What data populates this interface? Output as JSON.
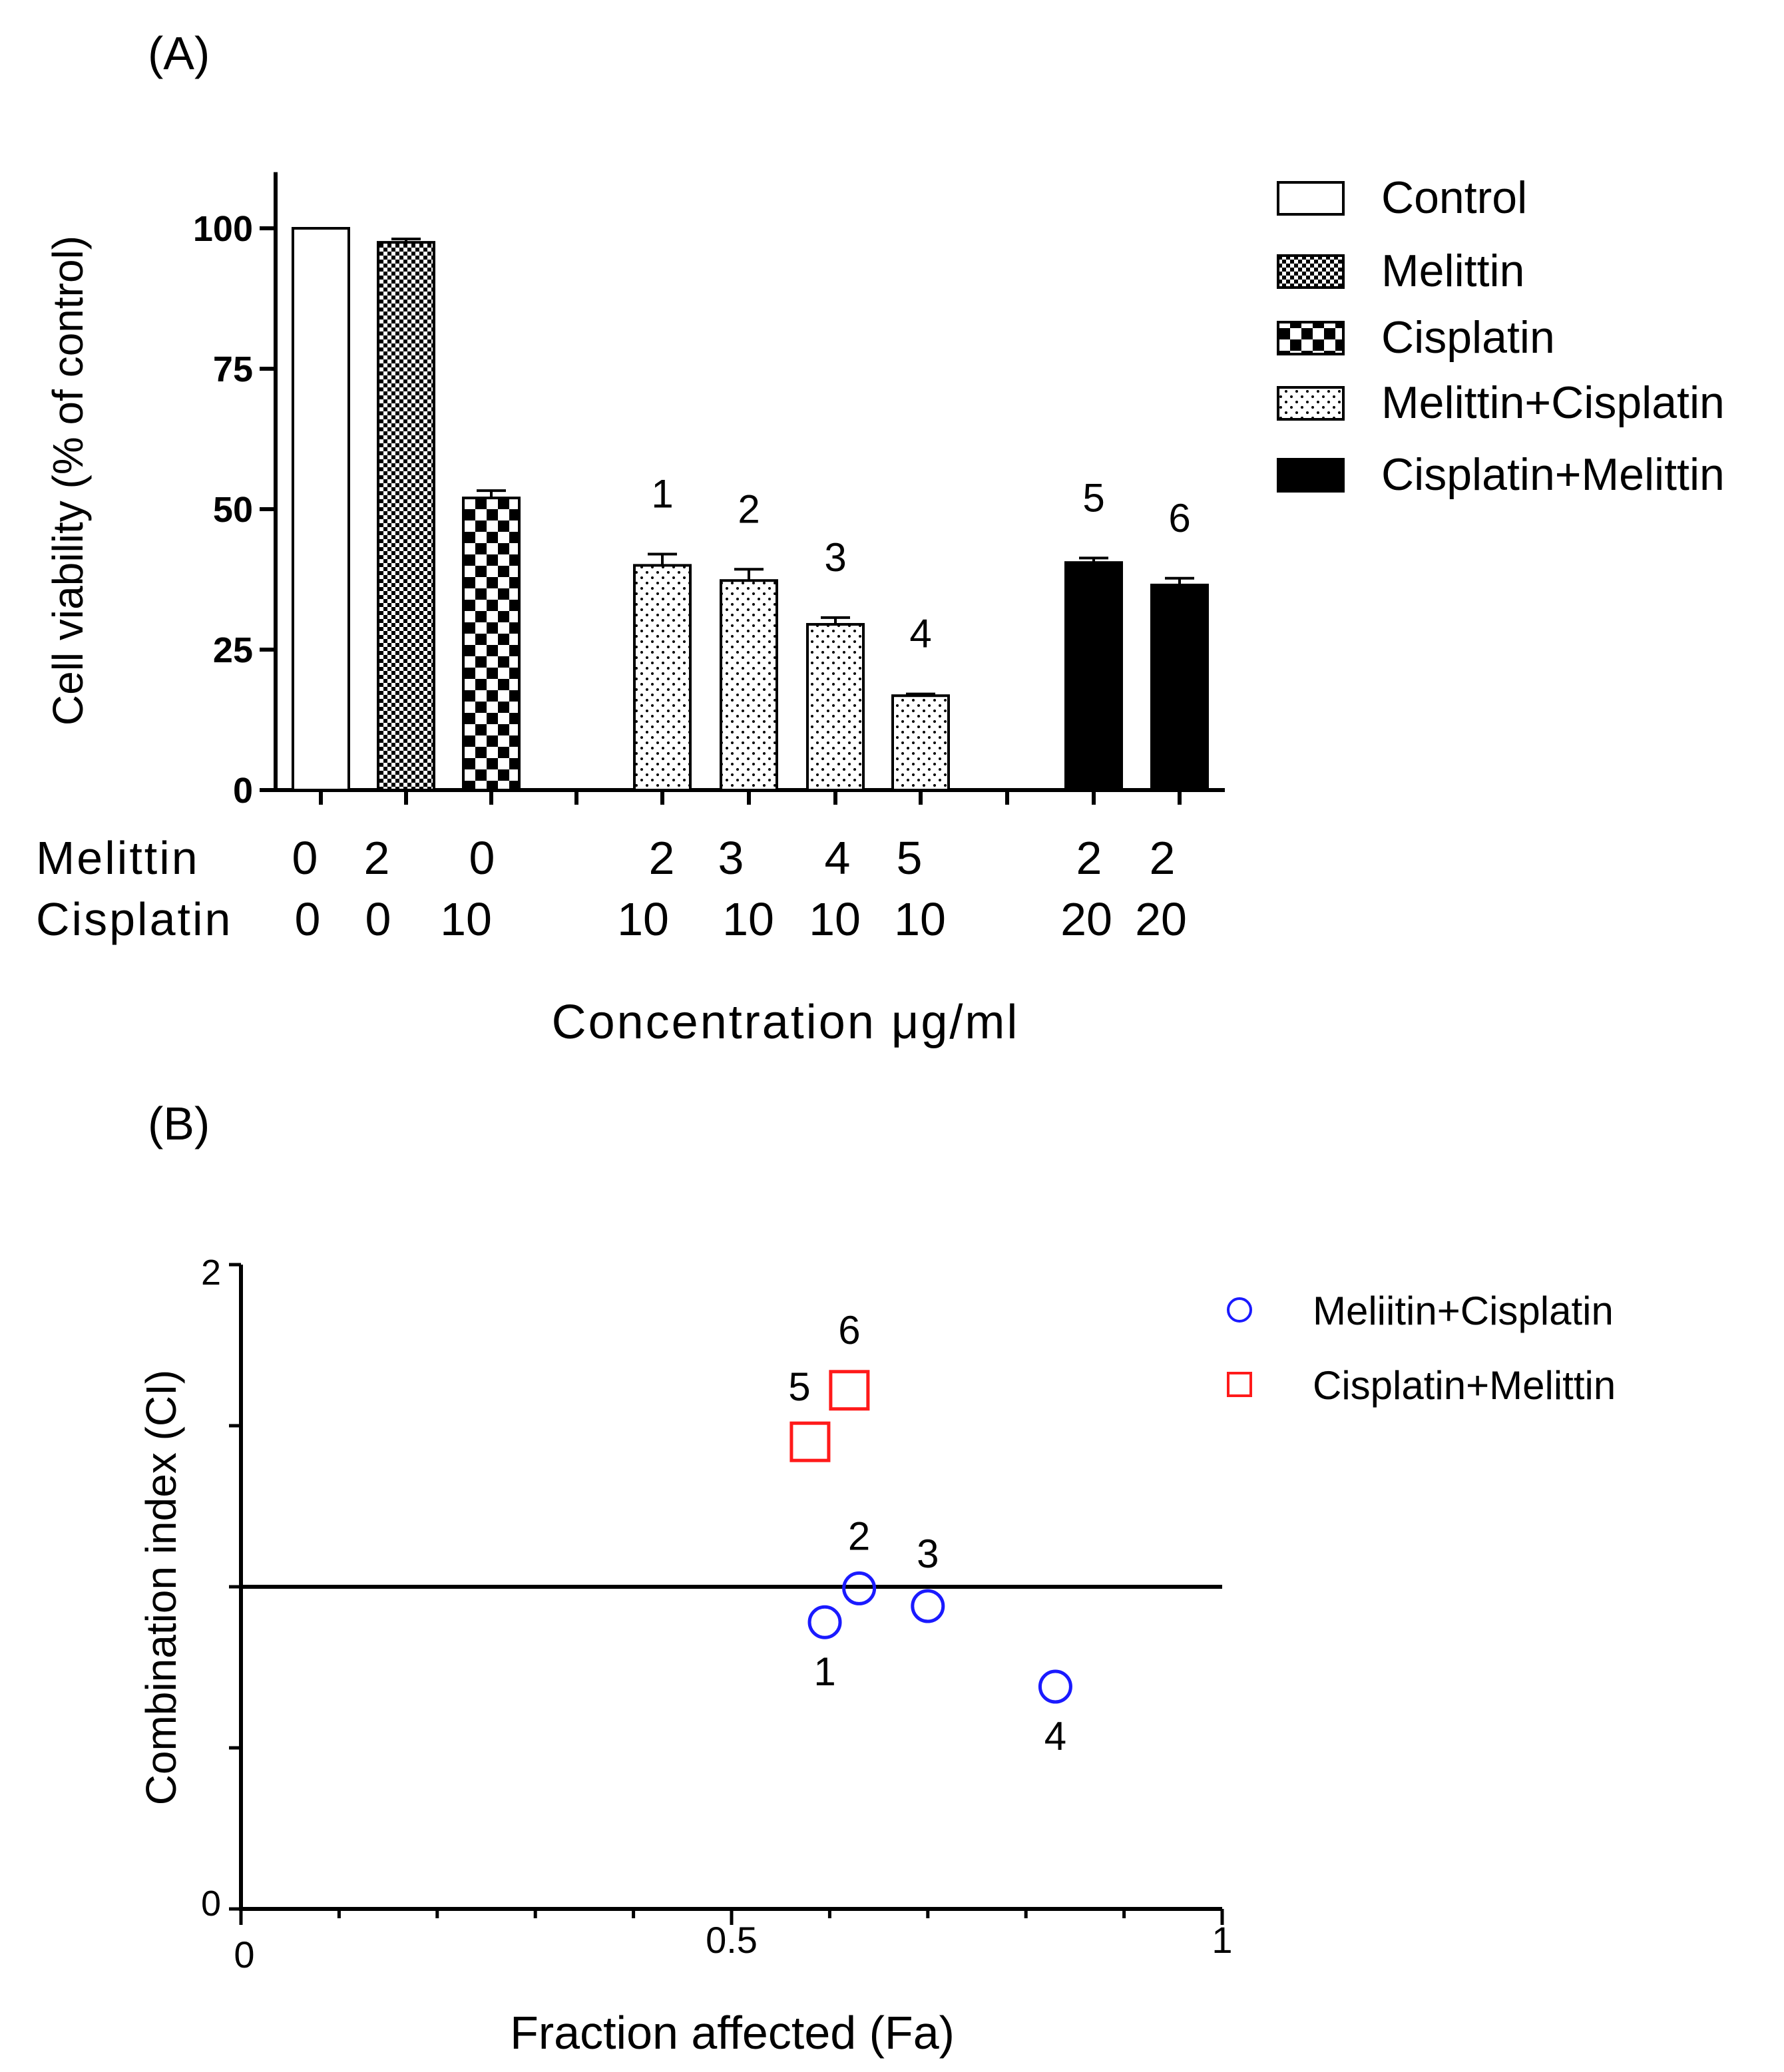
{
  "chart_data": [
    {
      "panel": "(A)",
      "type": "bar",
      "ylabel": "Cell viability (% of control)",
      "xlabel": "Concentration μg/ml",
      "ylim": [
        0,
        110
      ],
      "yticks": [
        0,
        25,
        50,
        75,
        100
      ],
      "row_labels": [
        "Melittin",
        "Cisplatin"
      ],
      "bars": [
        {
          "series": "Control",
          "melittin": "0",
          "cisplatin": "0",
          "value": 100,
          "error": 0,
          "label": ""
        },
        {
          "series": "Melittin",
          "melittin": "2",
          "cisplatin": "0",
          "value": 97.5,
          "error": 0.6,
          "label": ""
        },
        {
          "series": "Cisplatin",
          "melittin": "0",
          "cisplatin": "10",
          "value": 52,
          "error": 1.3,
          "label": ""
        },
        {
          "series": "Melittin+Cisplatin",
          "melittin": "2",
          "cisplatin": "10",
          "value": 40,
          "error": 2.0,
          "label": "1"
        },
        {
          "series": "Melittin+Cisplatin",
          "melittin": "3",
          "cisplatin": "10",
          "value": 37.3,
          "error": 2.0,
          "label": "2"
        },
        {
          "series": "Melittin+Cisplatin",
          "melittin": "4",
          "cisplatin": "10",
          "value": 29.5,
          "error": 1.2,
          "label": "3"
        },
        {
          "series": "Melittin+Cisplatin",
          "melittin": "5",
          "cisplatin": "10",
          "value": 16.8,
          "error": 0.3,
          "label": "4"
        },
        {
          "series": "Cisplatin+Melittin",
          "melittin": "2",
          "cisplatin": "20",
          "value": 40.5,
          "error": 0.8,
          "label": "5"
        },
        {
          "series": "Cisplatin+Melittin",
          "melittin": "2",
          "cisplatin": "20",
          "value": 36.5,
          "error": 1.2,
          "label": "6"
        }
      ],
      "legend": [
        "Control",
        "Melittin",
        "Cisplatin",
        "Melittin+Cisplatin",
        "Cisplatin+Melittin"
      ],
      "legend_position": "right"
    },
    {
      "panel": "(B)",
      "type": "scatter",
      "xlabel": "Fraction affected (Fa)",
      "ylabel": "Combination index (CI)",
      "xlim": [
        0,
        1
      ],
      "ylim": [
        0,
        2
      ],
      "xtick_labels": [
        "0",
        "0.5",
        "1"
      ],
      "ytick_labels": [
        "0",
        "2"
      ],
      "reference_line_y": 1,
      "series": [
        {
          "name": "Meliitin+Cisplatin",
          "marker": "circle",
          "color": "#1a1aff",
          "points": [
            {
              "x": 0.595,
              "y": 0.89,
              "label": "1",
              "label_pos": "below"
            },
            {
              "x": 0.63,
              "y": 0.995,
              "label": "2",
              "label_pos": "above"
            },
            {
              "x": 0.7,
              "y": 0.94,
              "label": "3",
              "label_pos": "above"
            },
            {
              "x": 0.83,
              "y": 0.69,
              "label": "4",
              "label_pos": "below"
            }
          ]
        },
        {
          "name": "Cisplatin+Melittin",
          "marker": "square",
          "color": "#ff1a1a",
          "points": [
            {
              "x": 0.58,
              "y": 1.45,
              "label": "5",
              "label_pos": "above-left"
            },
            {
              "x": 0.62,
              "y": 1.61,
              "label": "6",
              "label_pos": "above"
            }
          ]
        }
      ],
      "legend_position": "top-right"
    }
  ]
}
